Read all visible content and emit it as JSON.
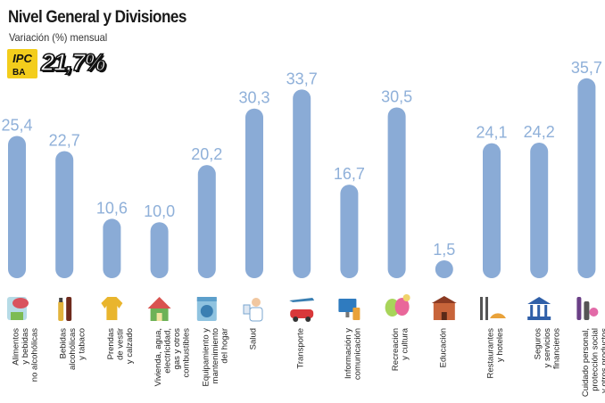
{
  "header": {
    "title": "Nivel General y Divisiones",
    "subtitle": "Variación (%) mensual",
    "logo_text": "IPC",
    "logo_subtext": "BA",
    "headline_value": "21,7%"
  },
  "colors": {
    "bar": "#8aabd6",
    "value_label": "#8fb0d9",
    "logo_yellow": "#f3cd1c"
  },
  "chart_data": {
    "type": "bar",
    "title": "Nivel General y Divisiones",
    "subtitle": "Variación (%) mensual",
    "xlabel": "",
    "ylabel": "",
    "ylim": [
      0,
      36
    ],
    "grid": false,
    "categories": [
      [
        "Alimentos",
        "y bebidas",
        "no alcohólicas"
      ],
      [
        "Bebidas",
        "alcohólicas",
        "y tabaco"
      ],
      [
        "Prendas",
        "de vestir",
        "y calzado"
      ],
      [
        "Vivienda, agua,",
        "electricidad,",
        "gas y otros",
        "combustibles"
      ],
      [
        "Equipamiento y",
        "mantenimiento",
        "del hogar"
      ],
      [
        "Salud"
      ],
      [
        "Transporte"
      ],
      [
        "Información y",
        "comunicación"
      ],
      [
        "Recreación",
        "y cultura"
      ],
      [
        "Educación"
      ],
      [
        "Restaurantes",
        "y hoteles"
      ],
      [
        "Seguros",
        "y servicios",
        "financieros"
      ],
      [
        "Cuidado personal,",
        "protección social",
        "y otros productos"
      ]
    ],
    "values": [
      25.4,
      22.7,
      10.6,
      10.0,
      20.2,
      30.3,
      33.7,
      16.7,
      30.5,
      1.5,
      24.1,
      24.2,
      35.7
    ],
    "value_labels": [
      "25,4",
      "22,7",
      "10,6",
      "10,0",
      "20,2",
      "30,3",
      "33,7",
      "16,7",
      "30,5",
      "1,5",
      "24,1",
      "24,2",
      "35,7"
    ],
    "icons": [
      "food-icon",
      "liquor-icon",
      "clothing-icon",
      "house-icon",
      "washing-machine-icon",
      "doctor-icon",
      "transport-icon",
      "computer-icon",
      "theater-masks-icon",
      "school-icon",
      "restaurant-icon",
      "bank-icon",
      "personal-care-icon"
    ]
  }
}
